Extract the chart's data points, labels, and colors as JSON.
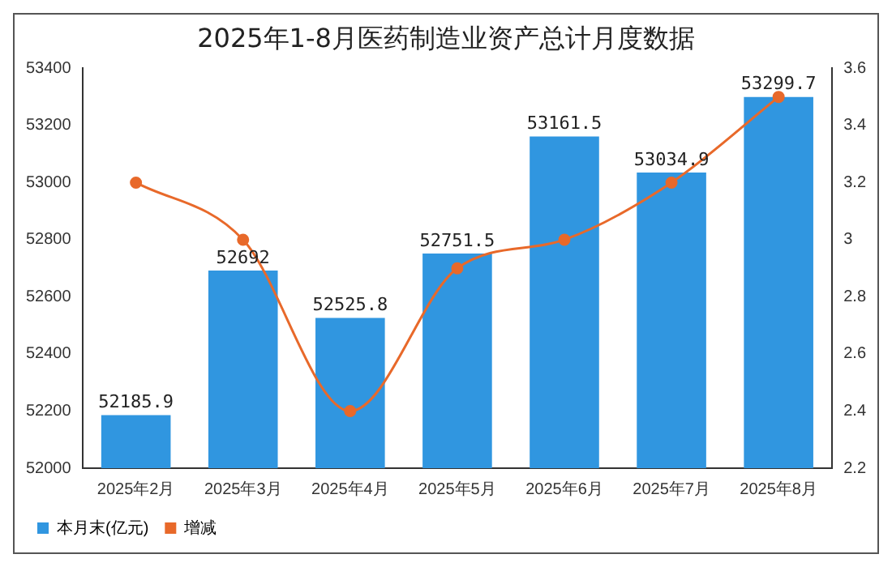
{
  "chart_data": {
    "type": "bar",
    "title": "2025年1-8月医药制造业资产总计月度数据",
    "categories": [
      "2025年2月",
      "2025年3月",
      "2025年4月",
      "2025年5月",
      "2025年6月",
      "2025年7月",
      "2025年8月"
    ],
    "series": [
      {
        "name": "本月末(亿元)",
        "color": "#3096e0",
        "values": [
          52185.9,
          52692,
          52525.8,
          52751.5,
          53161.5,
          53034.9,
          53299.7
        ]
      },
      {
        "name": "增减",
        "type": "line",
        "axis": "y2",
        "color": "#e8692a",
        "values": [
          3.2,
          3.0,
          2.4,
          2.9,
          3.0,
          3.2,
          3.5
        ]
      }
    ],
    "ylim": [
      52000,
      53400
    ],
    "yticks": [
      52000,
      52200,
      52400,
      52600,
      52800,
      53000,
      53200,
      53400
    ],
    "y2lim": [
      2.2,
      3.6
    ],
    "y2ticks": [
      {
        "value": 2.2,
        "label": "2.2"
      },
      {
        "value": 2.4,
        "label": "2.4"
      },
      {
        "value": 2.6,
        "label": "2.6"
      },
      {
        "value": 2.8,
        "label": "2.8"
      },
      {
        "value": 3,
        "label": "3"
      },
      {
        "value": 3.2,
        "label": "3.2"
      },
      {
        "value": 3.4,
        "label": "3.4"
      },
      {
        "value": 3.6,
        "label": "3.6"
      }
    ],
    "value_labels": [
      "52185.9",
      "52692",
      "52525.8",
      "52751.5",
      "53161.5",
      "53034.9",
      "53299.7"
    ],
    "legend": "bottom left",
    "marker": "circle",
    "grid": false
  }
}
